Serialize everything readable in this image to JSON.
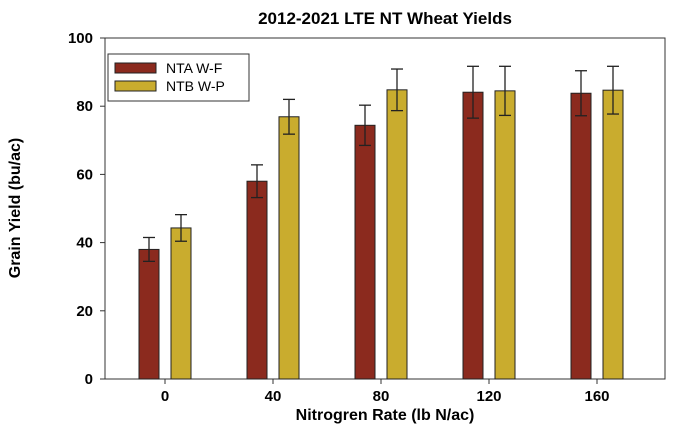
{
  "chart_data": {
    "type": "bar",
    "title": "2012-2021 LTE NT Wheat Yields",
    "xlabel": "Nitrogren Rate (lb N/ac)",
    "ylabel": "Grain Yield (bu/ac)",
    "categories": [
      "0",
      "40",
      "80",
      "120",
      "160"
    ],
    "ylim": [
      0,
      100
    ],
    "yticks": [
      0,
      20,
      40,
      60,
      80,
      100
    ],
    "grid": false,
    "legend_placement": "top-left",
    "series": [
      {
        "name": "NTA W-F",
        "color": "#8b2a1e",
        "values": [
          38.0,
          58.0,
          74.4,
          84.1,
          83.8
        ],
        "errors": [
          3.5,
          4.8,
          5.9,
          7.6,
          6.6
        ]
      },
      {
        "name": "NTB W-P",
        "color": "#c9ac2e",
        "values": [
          44.3,
          76.9,
          84.8,
          84.5,
          84.7
        ],
        "errors": [
          3.9,
          5.1,
          6.1,
          7.2,
          7.0
        ]
      }
    ]
  }
}
